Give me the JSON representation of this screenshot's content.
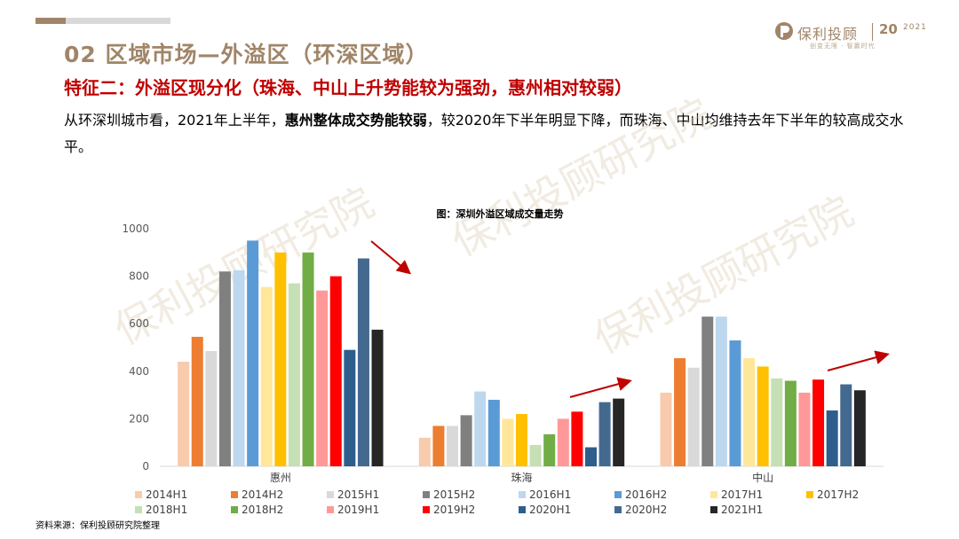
{
  "header": {
    "title": "02  区域市场—外溢区（环深区域）",
    "subtitle": "特征二：外溢区现分化（珠海、中山上升势能较为强劲，惠州相对较弱）",
    "body_pre": "从环深圳城市看，2021年上半年，",
    "body_bold": "惠州整体成交势能较弱",
    "body_post": "，较2020年下半年明显下降，而珠海、中山均维持去年下半年的较高成交水平。"
  },
  "logo": {
    "name": "保利投顾",
    "anniversary": "20",
    "year": "2021",
    "slogan": "创变无限 · 智赢时代"
  },
  "watermark": "保利投顾研究院",
  "source": "资料来源：保利投顾研究院整理",
  "colors": {
    "accent": "#a08568",
    "highlight": "#c00000"
  },
  "chart_data": {
    "type": "bar",
    "title": "图：深圳外溢区域成交量走势",
    "xlabel": "",
    "ylabel": "",
    "ylim": [
      0,
      1000
    ],
    "yticks": [
      0,
      200,
      400,
      600,
      800,
      1000
    ],
    "categories": [
      "惠州",
      "珠海",
      "中山"
    ],
    "series": [
      {
        "name": "2014H1",
        "color": "#f8cbad",
        "values": [
          440,
          120,
          310
        ]
      },
      {
        "name": "2014H2",
        "color": "#ed7d31",
        "values": [
          545,
          170,
          455
        ]
      },
      {
        "name": "2015H1",
        "color": "#d9d9d9",
        "values": [
          485,
          170,
          415
        ]
      },
      {
        "name": "2015H2",
        "color": "#808080",
        "values": [
          820,
          215,
          630
        ]
      },
      {
        "name": "2016H1",
        "color": "#bdd7ee",
        "values": [
          825,
          315,
          630
        ]
      },
      {
        "name": "2016H2",
        "color": "#5b9bd5",
        "values": [
          950,
          280,
          530
        ]
      },
      {
        "name": "2017H1",
        "color": "#ffe699",
        "values": [
          755,
          200,
          455
        ]
      },
      {
        "name": "2017H2",
        "color": "#ffc000",
        "values": [
          900,
          220,
          420
        ]
      },
      {
        "name": "2018H1",
        "color": "#c5e0b4",
        "values": [
          770,
          90,
          370
        ]
      },
      {
        "name": "2018H2",
        "color": "#70ad47",
        "values": [
          900,
          135,
          360
        ]
      },
      {
        "name": "2019H1",
        "color": "#ff9999",
        "values": [
          740,
          200,
          310
        ]
      },
      {
        "name": "2019H2",
        "color": "#ff0000",
        "values": [
          800,
          230,
          365
        ]
      },
      {
        "name": "2020H1",
        "color": "#2e5e8c",
        "values": [
          490,
          80,
          235
        ]
      },
      {
        "name": "2020H2",
        "color": "#44698f",
        "values": [
          875,
          270,
          345
        ]
      },
      {
        "name": "2021H1",
        "color": "#262626",
        "values": [
          575,
          285,
          320
        ]
      }
    ],
    "legend_position": "bottom",
    "grid": false
  }
}
